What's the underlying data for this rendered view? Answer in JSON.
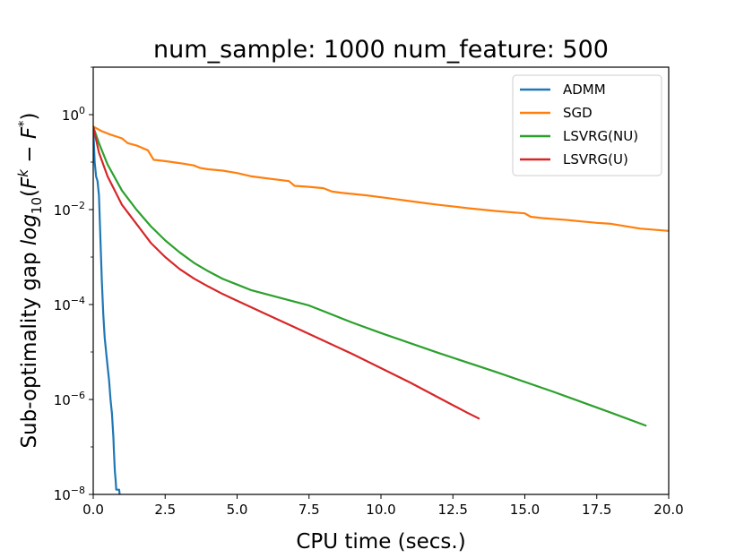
{
  "chart_data": {
    "type": "line",
    "title": "num_sample: 1000 num_feature: 500",
    "xlabel": "CPU time (secs.)",
    "ylabel_main": "Sub-optimality gap ",
    "ylabel_math": "log",
    "ylabel_sub": "10",
    "ylabel_paren_open": "(",
    "ylabel_F1": "F",
    "ylabel_sup_k": "k",
    "ylabel_minus": " − ",
    "ylabel_F2": "F",
    "ylabel_sup_star": "*",
    "ylabel_paren_close": ")",
    "yscale": "log",
    "xlim": [
      0,
      20
    ],
    "ylim_log10": [
      -8,
      1
    ],
    "legend_position": "top-right",
    "x_ticks": [
      {
        "value": 0,
        "label": "0.0"
      },
      {
        "value": 2.5,
        "label": "2.5"
      },
      {
        "value": 5,
        "label": "5.0"
      },
      {
        "value": 7.5,
        "label": "7.5"
      },
      {
        "value": 10,
        "label": "10.0"
      },
      {
        "value": 12.5,
        "label": "12.5"
      },
      {
        "value": 15,
        "label": "15.0"
      },
      {
        "value": 17.5,
        "label": "17.5"
      },
      {
        "value": 20,
        "label": "20.0"
      }
    ],
    "y_ticks": [
      {
        "exp": 0,
        "base": "10",
        "sup": "0"
      },
      {
        "exp": -2,
        "base": "10",
        "sup": "−2"
      },
      {
        "exp": -4,
        "base": "10",
        "sup": "−4"
      },
      {
        "exp": -6,
        "base": "10",
        "sup": "−6"
      },
      {
        "exp": -8,
        "base": "10",
        "sup": "−8"
      }
    ],
    "series": [
      {
        "name": "ADMM",
        "color": "#1f77b4",
        "points": [
          [
            0,
            -0.25
          ],
          [
            0.05,
            -1.0
          ],
          [
            0.1,
            -1.3
          ],
          [
            0.15,
            -1.4
          ],
          [
            0.2,
            -1.7
          ],
          [
            0.25,
            -2.6
          ],
          [
            0.3,
            -3.5
          ],
          [
            0.35,
            -4.2
          ],
          [
            0.4,
            -4.7
          ],
          [
            0.45,
            -5.0
          ],
          [
            0.5,
            -5.3
          ],
          [
            0.55,
            -5.6
          ],
          [
            0.6,
            -6.0
          ],
          [
            0.65,
            -6.3
          ],
          [
            0.7,
            -6.8
          ],
          [
            0.72,
            -7.1
          ],
          [
            0.75,
            -7.5
          ],
          [
            0.78,
            -7.7
          ],
          [
            0.8,
            -7.9
          ],
          [
            0.85,
            -7.9
          ],
          [
            0.9,
            -7.9
          ],
          [
            0.92,
            -8.0
          ]
        ]
      },
      {
        "name": "SGD",
        "color": "#ff7f0e",
        "points": [
          [
            0,
            -0.25
          ],
          [
            0.3,
            -0.35
          ],
          [
            0.6,
            -0.42
          ],
          [
            1.0,
            -0.5
          ],
          [
            1.2,
            -0.6
          ],
          [
            1.5,
            -0.65
          ],
          [
            1.9,
            -0.75
          ],
          [
            2.1,
            -0.95
          ],
          [
            2.5,
            -0.98
          ],
          [
            3.0,
            -1.02
          ],
          [
            3.5,
            -1.07
          ],
          [
            3.7,
            -1.12
          ],
          [
            4.0,
            -1.15
          ],
          [
            4.5,
            -1.18
          ],
          [
            5.0,
            -1.23
          ],
          [
            5.5,
            -1.3
          ],
          [
            6.0,
            -1.34
          ],
          [
            6.8,
            -1.4
          ],
          [
            7.0,
            -1.5
          ],
          [
            7.5,
            -1.52
          ],
          [
            8.0,
            -1.55
          ],
          [
            8.3,
            -1.62
          ],
          [
            8.7,
            -1.65
          ],
          [
            9.5,
            -1.7
          ],
          [
            10.0,
            -1.74
          ],
          [
            10.5,
            -1.78
          ],
          [
            11.0,
            -1.82
          ],
          [
            11.5,
            -1.86
          ],
          [
            12.0,
            -1.9
          ],
          [
            12.6,
            -1.94
          ],
          [
            13.0,
            -1.97
          ],
          [
            14.0,
            -2.03
          ],
          [
            15.0,
            -2.08
          ],
          [
            15.2,
            -2.15
          ],
          [
            15.6,
            -2.18
          ],
          [
            16.5,
            -2.22
          ],
          [
            17.0,
            -2.25
          ],
          [
            17.5,
            -2.28
          ],
          [
            18.0,
            -2.3
          ],
          [
            18.5,
            -2.35
          ],
          [
            19.0,
            -2.4
          ],
          [
            20.0,
            -2.45
          ]
        ]
      },
      {
        "name": "LSVRG(NU)",
        "color": "#2ca02c",
        "points": [
          [
            0,
            -0.25
          ],
          [
            0.2,
            -0.6
          ],
          [
            0.5,
            -1.05
          ],
          [
            1.0,
            -1.6
          ],
          [
            1.5,
            -2.0
          ],
          [
            2.0,
            -2.35
          ],
          [
            2.5,
            -2.65
          ],
          [
            3.0,
            -2.9
          ],
          [
            3.5,
            -3.12
          ],
          [
            4.0,
            -3.3
          ],
          [
            4.5,
            -3.46
          ],
          [
            5.0,
            -3.58
          ],
          [
            5.5,
            -3.7
          ],
          [
            6.0,
            -3.78
          ],
          [
            6.5,
            -3.86
          ],
          [
            7.0,
            -3.94
          ],
          [
            7.5,
            -4.02
          ],
          [
            8.0,
            -4.14
          ],
          [
            9.0,
            -4.38
          ],
          [
            10.0,
            -4.6
          ],
          [
            12.0,
            -5.02
          ],
          [
            14.0,
            -5.42
          ],
          [
            16.0,
            -5.84
          ],
          [
            18.0,
            -6.28
          ],
          [
            19.2,
            -6.55
          ]
        ]
      },
      {
        "name": "LSVRG(U)",
        "color": "#d62728",
        "points": [
          [
            0,
            -0.25
          ],
          [
            0.2,
            -0.8
          ],
          [
            0.5,
            -1.3
          ],
          [
            1.0,
            -1.9
          ],
          [
            1.5,
            -2.3
          ],
          [
            2.0,
            -2.7
          ],
          [
            2.5,
            -3.0
          ],
          [
            3.0,
            -3.25
          ],
          [
            3.5,
            -3.45
          ],
          [
            4.0,
            -3.62
          ],
          [
            4.5,
            -3.78
          ],
          [
            5.0,
            -3.92
          ],
          [
            6.0,
            -4.2
          ],
          [
            7.0,
            -4.48
          ],
          [
            8.0,
            -4.76
          ],
          [
            9.0,
            -5.04
          ],
          [
            10.0,
            -5.34
          ],
          [
            11.0,
            -5.64
          ],
          [
            12.0,
            -5.96
          ],
          [
            13.0,
            -6.28
          ],
          [
            13.4,
            -6.4
          ]
        ]
      }
    ]
  }
}
